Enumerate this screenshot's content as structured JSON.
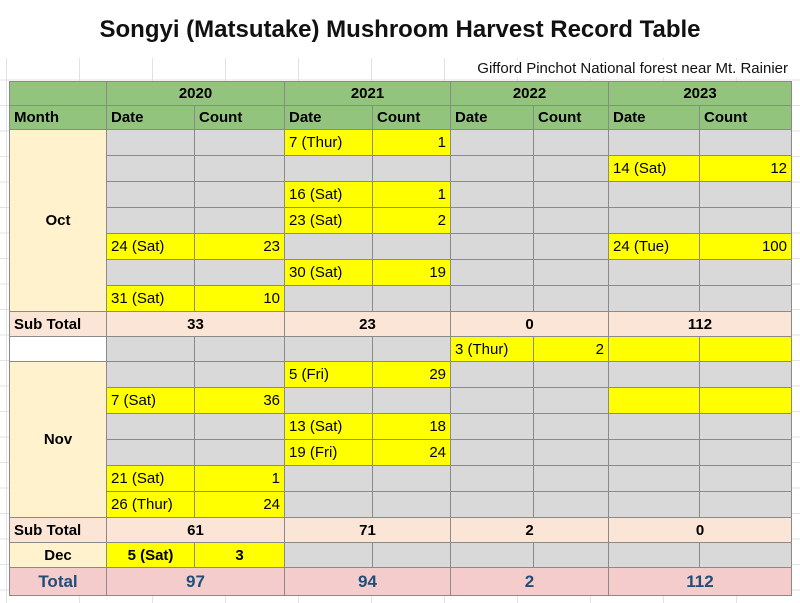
{
  "title": "Songyi (Matsutake) Mushroom Harvest Record Table",
  "subtitle": "Gifford Pinchot National forest near Mt. Rainier",
  "years": [
    "2020",
    "2021",
    "2022",
    "2023"
  ],
  "headers": {
    "month": "Month",
    "date": "Date",
    "count": "Count"
  },
  "months": {
    "oct": "Oct",
    "nov": "Nov",
    "dec": "Dec"
  },
  "labels": {
    "subtotal": "Sub Total",
    "total": "Total"
  },
  "oct": {
    "y2020": {
      "r5": {
        "date": "24 (Sat)",
        "count": "23"
      },
      "r7": {
        "date": "31 (Sat)",
        "count": "10"
      }
    },
    "y2021": {
      "r1": {
        "date": "7 (Thur)",
        "count": "1"
      },
      "r3": {
        "date": "16 (Sat)",
        "count": "1"
      },
      "r4": {
        "date": "23 (Sat)",
        "count": "2"
      },
      "r6": {
        "date": "30 (Sat)",
        "count": "19"
      }
    },
    "y2023": {
      "r2": {
        "date": "14 (Sat)",
        "count": "12"
      },
      "r5": {
        "date": "24 (Tue)",
        "count": "100"
      }
    },
    "subtotals": [
      "33",
      "23",
      "0",
      "112"
    ]
  },
  "between": {
    "y2022": {
      "date": "3 (Thur)",
      "count": "2"
    }
  },
  "nov": {
    "y2020": {
      "r2": {
        "date": "7 (Sat)",
        "count": "36"
      },
      "r5": {
        "date": "21 (Sat)",
        "count": "1"
      },
      "r6": {
        "date": "26 (Thur)",
        "count": "24"
      }
    },
    "y2021": {
      "r1": {
        "date": "5 (Fri)",
        "count": "29"
      },
      "r3": {
        "date": "13 (Sat)",
        "count": "18"
      },
      "r4": {
        "date": "19 (Fri)",
        "count": "24"
      }
    },
    "subtotals": [
      "61",
      "71",
      "2",
      "0"
    ]
  },
  "dec": {
    "y2020": {
      "date": "5 (Sat)",
      "count": "3"
    }
  },
  "totals": [
    "97",
    "94",
    "2",
    "112"
  ],
  "colors": {
    "header_green": "#93c47d",
    "highlight_yellow": "#ffff00",
    "empty_gray": "#d9d9d9",
    "month_cream": "#fff2cc",
    "subtotal_peach": "#fbe5d6",
    "total_pink": "#f4cccc"
  }
}
